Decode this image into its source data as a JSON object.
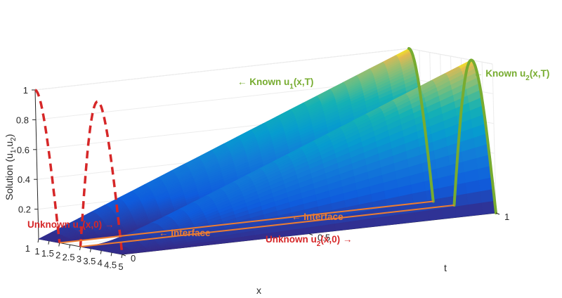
{
  "chart_data": {
    "type": "surface",
    "title": "",
    "xlabel": "x",
    "ylabel": "t",
    "zlabel": "Solution (u1,u2)",
    "zlabel_parts": {
      "main": "Solution (u",
      "sub1": "1",
      "mid": ",u",
      "sub2": "2",
      "end": ")"
    },
    "xlim": [
      1,
      5
    ],
    "ylim": [
      0,
      1
    ],
    "zlim": [
      0,
      1
    ],
    "x_ticks": [
      "1",
      "1.5",
      "2",
      "2.5",
      "3",
      "3.5",
      "4",
      "4.5",
      "5"
    ],
    "y_ticks": [
      "0",
      "0.5",
      "1"
    ],
    "z_ticks": [
      "0.2",
      "0.4",
      "0.6",
      "0.8",
      "1"
    ],
    "grid": true,
    "colormap": "parula",
    "series": [
      {
        "name": "u1",
        "x_range": [
          1,
          2
        ],
        "t_range": [
          0,
          1
        ],
        "profile_at_t1": {
          "type": "cos",
          "x": [
            1,
            1.25,
            1.5,
            1.75,
            2
          ],
          "u": [
            1,
            0.92,
            0.71,
            0.38,
            0
          ]
        }
      },
      {
        "name": "u2",
        "x_range": [
          3,
          5
        ],
        "t_range": [
          0,
          1
        ],
        "profile_at_t1": {
          "type": "sin",
          "x": [
            3,
            3.5,
            4,
            4.5,
            5
          ],
          "u": [
            0,
            0.71,
            1,
            0.71,
            0
          ]
        }
      }
    ],
    "annotations": {
      "known_u1": {
        "pre": "← Known u",
        "sub": "1",
        "post": "(x,T)",
        "color": "#77ac30"
      },
      "known_u2": {
        "pre": "← Known u",
        "sub": "2",
        "post": "(x,T)",
        "color": "#77ac30"
      },
      "unknown_u1": {
        "pre": "Unknown u",
        "sub": "1",
        "post": "(x,0) →",
        "color": "#d62728"
      },
      "unknown_u2": {
        "pre": "Unknown u",
        "sub": "2",
        "post": "(x,0) →",
        "color": "#d62728"
      },
      "interface_1": {
        "text": "← Interface",
        "color": "#ed7d31"
      },
      "interface_2": {
        "text": "← Interface",
        "color": "#ed7d31"
      }
    }
  }
}
